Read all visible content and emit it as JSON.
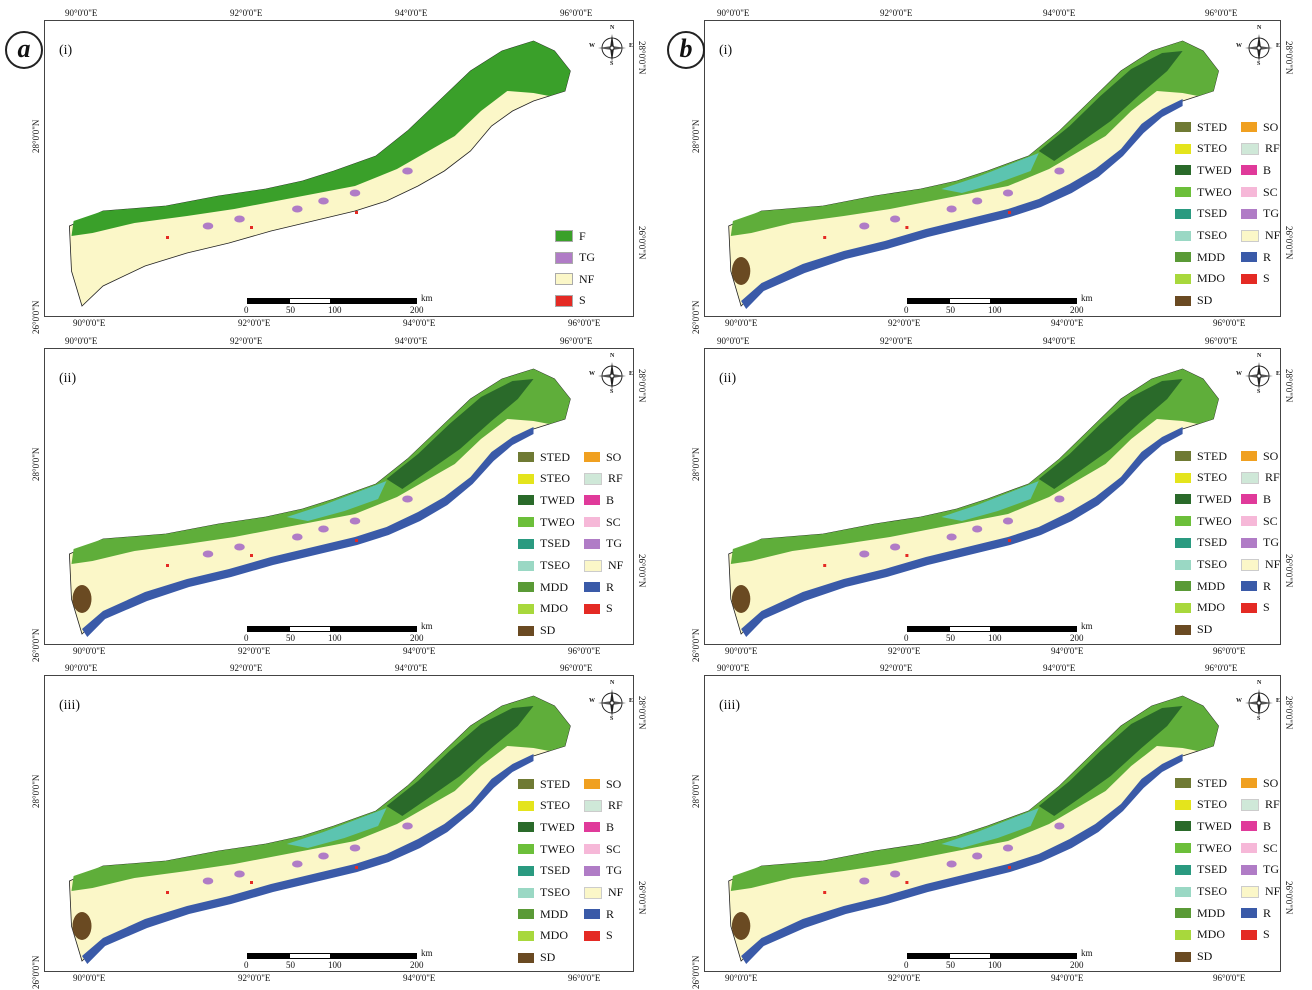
{
  "figure_labels": [
    "a",
    "b"
  ],
  "subpanel_labels": [
    "(i)",
    "(ii)",
    "(iii)"
  ],
  "longitude_labels": [
    "90°0'0\"E",
    "92°0'0\"E",
    "94°0'0\"E",
    "96°0'0\"E"
  ],
  "latitude_labels": [
    "26°0'0\"N",
    "28°0'0\"N"
  ],
  "compass": {
    "n": "N",
    "s": "S",
    "e": "E",
    "w": "W"
  },
  "scale": {
    "unit": "km",
    "ticks": [
      "0",
      "50",
      "100",
      "200"
    ]
  },
  "legend_simple": [
    {
      "code": "F",
      "color": "#3aa02a"
    },
    {
      "code": "TG",
      "color": "#b07cc6"
    },
    {
      "code": "NF",
      "color": "#fbf7c8"
    },
    {
      "code": "S",
      "color": "#e42a24"
    }
  ],
  "legend_full_left": [
    {
      "code": "STED",
      "color": "#6f7a34"
    },
    {
      "code": "STEO",
      "color": "#e4e41c"
    },
    {
      "code": "TWED",
      "color": "#2a6a2a"
    },
    {
      "code": "TWEO",
      "color": "#6cbf3a"
    },
    {
      "code": "TSED",
      "color": "#2a9a80"
    },
    {
      "code": "TSEO",
      "color": "#9ad8c4"
    },
    {
      "code": "MDD",
      "color": "#5a9a36"
    },
    {
      "code": "MDO",
      "color": "#a8d83c"
    },
    {
      "code": "SD",
      "color": "#6a4a22"
    }
  ],
  "legend_full_right": [
    {
      "code": "SO",
      "color": "#f0a020"
    },
    {
      "code": "RF",
      "color": "#cfe8d8"
    },
    {
      "code": "B",
      "color": "#e03a9a"
    },
    {
      "code": "SC",
      "color": "#f6b8d8"
    },
    {
      "code": "TG",
      "color": "#b07cc6"
    },
    {
      "code": "NF",
      "color": "#fbf7c8"
    },
    {
      "code": "R",
      "color": "#3a5aa8"
    },
    {
      "code": "S",
      "color": "#e42a24"
    }
  ]
}
